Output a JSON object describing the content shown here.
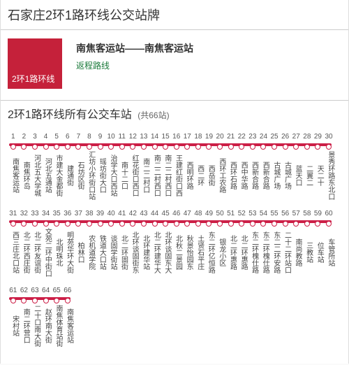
{
  "page": {
    "title": "石家庄2环1路环线公交站牌",
    "stops_heading": "2环1路环线所有公交车站",
    "stops_count_label": "(共66站)"
  },
  "logo": {
    "text": "2环1路环线"
  },
  "header": {
    "route_name": "南焦客运站——南焦客运站",
    "return_link": "返程路线"
  },
  "colors": {
    "brand": "#c5213a",
    "line": "#cc1f47",
    "link": "#1a7a3a"
  },
  "rows": [
    {
      "start": 1,
      "nums": [
        "1",
        "2",
        "3",
        "4",
        "5",
        "6",
        "7",
        "8",
        "9",
        "10",
        "11",
        "12",
        "13",
        "14",
        "15",
        "16",
        "17",
        "18",
        "19",
        "20",
        "21",
        "22",
        "23",
        "24",
        "25",
        "26",
        "27",
        "28",
        "29",
        "30"
      ],
      "stops": [
        "南焦客运站",
        "南焦环岛",
        "河北五大学城",
        "河北五通站",
        "市建大金都街",
        "建通街",
        "石坊区街",
        "汇坊小环街口站",
        "瑶坊街大口",
        "治学大口西站",
        "南十二口",
        "红花街口西口",
        "南二二村口",
        "南二二村西口",
        "南二二村西口",
        "王建红街口西",
        "西明环路",
        "西二环",
        "西岳街",
        "西环工农路",
        "西环石路",
        "西中华路",
        "西新合路",
        "西新合路",
        "古城广场",
        "古城广场",
        "蓝天口",
        "二翼二",
        "天二十",
        "景秀环路东北口"
      ]
    },
    {
      "start": 31,
      "nums": [
        "31",
        "32",
        "33",
        "34",
        "35",
        "36",
        "37",
        "38",
        "39",
        "40",
        "41",
        "42",
        "43",
        "44",
        "45",
        "46",
        "47",
        "48",
        "49",
        "50",
        "51",
        "52",
        "53",
        "54",
        "55",
        "56",
        "57",
        "58",
        "59",
        "60"
      ],
      "stops": [
        "西三庄北口站",
        "北二环西庄街",
        "北二环友谊街",
        "文苑二环中街口",
        "北明珠北",
        "明苑华环大街",
        "柏林口",
        "农机道学院",
        "铁道大口站",
        "谈固学街站",
        "北二环固街",
        "北环谈固街东",
        "北环建华站",
        "北二环建华大",
        "北环谈固东大",
        "北秋二景园",
        "秋景怡园东",
        "土贤石平庄",
        "东二环亿恒路",
        "银龙小区",
        "北二环惠路",
        "北二环惠路",
        "东二环槐仕路",
        "东二环槐仕路",
        "东二二环安路",
        "二十二环站口",
        "南尚教路",
        "三教站",
        "位车站",
        "车管所站"
      ]
    },
    {
      "start": 61,
      "nums": [
        "61",
        "62",
        "63",
        "64",
        "65",
        "66"
      ],
      "stops": [
        "宋村站",
        "南二环营口",
        "二十口南大街",
        "赵环南大街",
        "南焦体育站街",
        "南焦客运站"
      ]
    }
  ]
}
